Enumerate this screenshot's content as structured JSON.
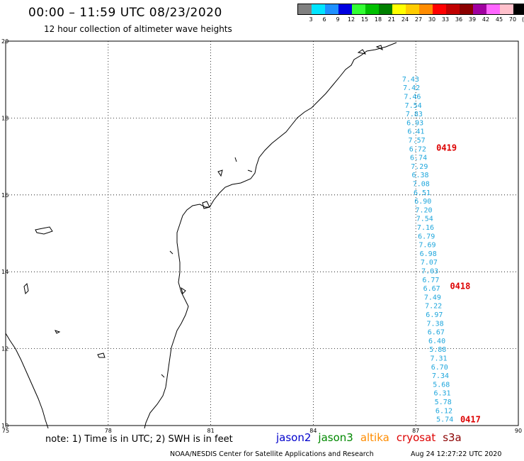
{
  "header": {
    "title": "00:00 – 11:59 UTC 08/23/2020",
    "subtitle": "12 hour collection of altimeter wave heights"
  },
  "scale": {
    "unit": "(ft)",
    "bins": [
      {
        "color": "#808080",
        "label": "3"
      },
      {
        "color": "#00e5ff",
        "label": "6"
      },
      {
        "color": "#1e90ff",
        "label": "9"
      },
      {
        "color": "#0000e0",
        "label": "12"
      },
      {
        "color": "#33ff33",
        "label": "15"
      },
      {
        "color": "#00c000",
        "label": "18"
      },
      {
        "color": "#008000",
        "label": "21"
      },
      {
        "color": "#ffff00",
        "label": "24"
      },
      {
        "color": "#ffcc00",
        "label": "27"
      },
      {
        "color": "#ff8c00",
        "label": "30"
      },
      {
        "color": "#ff0000",
        "label": "33"
      },
      {
        "color": "#c00000",
        "label": "36"
      },
      {
        "color": "#8b0000",
        "label": "39"
      },
      {
        "color": "#a000a0",
        "label": "42"
      },
      {
        "color": "#ff66ff",
        "label": "45"
      },
      {
        "color": "#ffc0cb",
        "label": "70"
      },
      {
        "color": "#000000",
        "label": "(ft)"
      }
    ]
  },
  "map": {
    "lon_range": [
      75,
      90
    ],
    "lat_range": [
      10,
      20
    ],
    "x_ticks": [
      "75",
      "78",
      "81",
      "84",
      "87",
      "90"
    ],
    "y_ticks": [
      "20",
      "18",
      "16",
      "14",
      "12",
      "10"
    ],
    "track": {
      "values": [
        "7.43",
        "7.42",
        "7.46",
        "7.54",
        "7.83",
        "6.93",
        "6.41",
        "7.57",
        "6.72",
        "6.74",
        "7.29",
        "6.38",
        "7.08",
        "6.51",
        "6.90",
        "7.20",
        "7.54",
        "7.16",
        "6.79",
        "7.69",
        "6.98",
        "7.07",
        "7.03",
        "6.77",
        "6.67",
        "7.49",
        "7.22",
        "6.97",
        "7.38",
        "6.67",
        "6.40",
        "5.88",
        "7.31",
        "6.70",
        "7.34",
        "5.68",
        "6.31",
        "5.78",
        "6.12",
        "5.74"
      ],
      "lat_start": 18.95,
      "lat_end": 10.1,
      "lon_start": 86.6,
      "lon_end": 87.6
    },
    "pass_labels": [
      {
        "text": "0419",
        "lat": 17.15,
        "lon": 87.6
      },
      {
        "text": "0418",
        "lat": 13.55,
        "lon": 88.0
      },
      {
        "text": "0417",
        "lat": 10.08,
        "lon": 88.3
      }
    ]
  },
  "footer": {
    "note": "note: 1) Time is in UTC; 2) SWH is in feet",
    "legend": [
      {
        "name": "jason2",
        "color": "#0000cc"
      },
      {
        "name": "jason3",
        "color": "#008800"
      },
      {
        "name": "altika",
        "color": "#ff8c00"
      },
      {
        "name": "cryosat",
        "color": "#dd0000"
      },
      {
        "name": "s3a",
        "color": "#8b0000"
      }
    ],
    "credit": "NOAA/NESDIS Center for Satellite Applications and Research",
    "timestamp": "Aug 24 12:27:22 UTC 2020"
  }
}
